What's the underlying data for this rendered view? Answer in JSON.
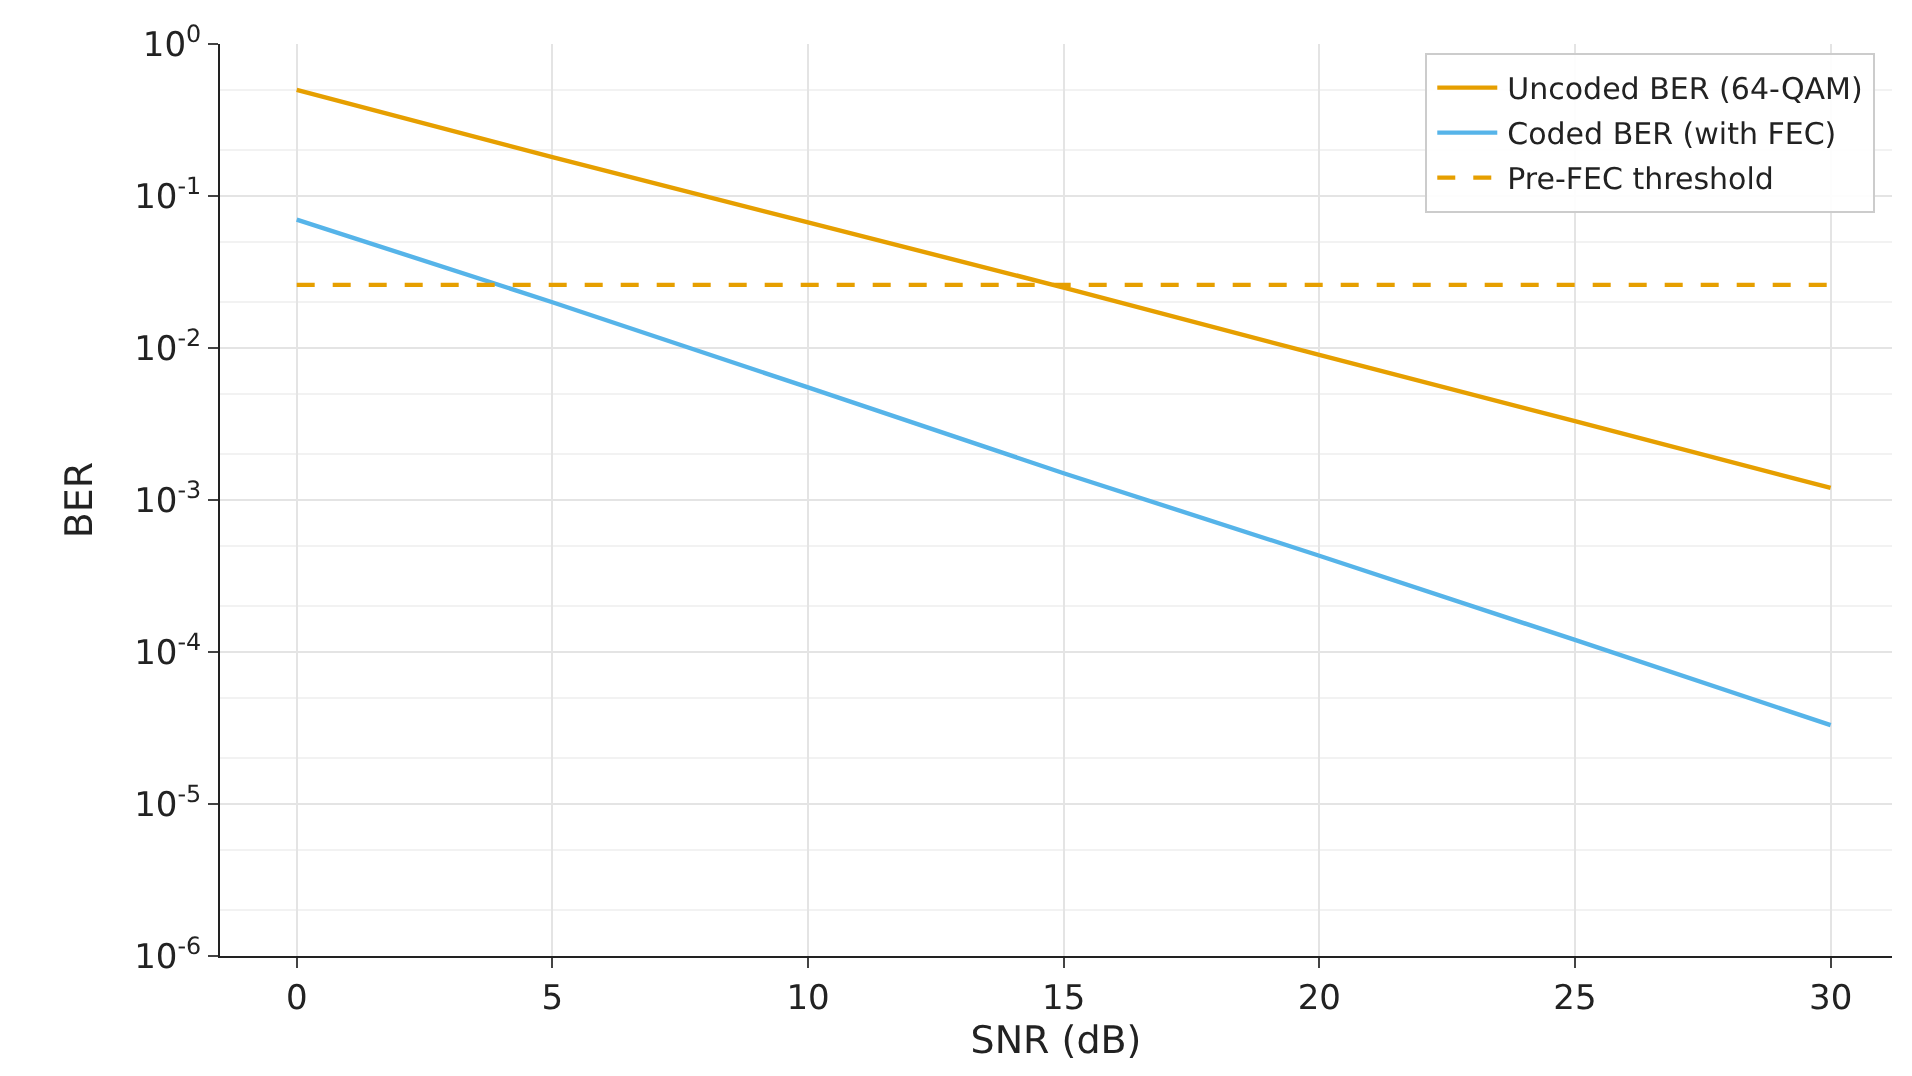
{
  "chart_data": {
    "type": "line",
    "xlabel": "SNR (dB)",
    "ylabel": "BER",
    "log": "y",
    "grid": true,
    "legend": "top right",
    "xlim": [
      -1.5,
      31.2
    ],
    "xticks": [
      0,
      5,
      10,
      15,
      20,
      25,
      30
    ],
    "ylim": [
      1e-06,
      1
    ],
    "yticks": [
      {
        "value": 1e-06,
        "label": "10$^{-6}$"
      },
      {
        "value": 1e-05,
        "label": "10$^{-5}$"
      },
      {
        "value": 0.0001,
        "label": "10$^{-4}$"
      },
      {
        "value": 0.001,
        "label": "10$^{-3}$"
      },
      {
        "value": 0.01,
        "label": "10$^{-2}$"
      },
      {
        "value": 0.1,
        "label": "10$^{-1}$"
      },
      {
        "value": 1,
        "label": "10$^{0}$"
      }
    ],
    "x": [
      0,
      5,
      10,
      15,
      20,
      25,
      30
    ],
    "series": [
      {
        "name": "Uncoded BER (64-QAM)",
        "color": "#e69f00",
        "values": [
          0.5,
          0.18,
          0.067,
          0.025,
          0.009,
          0.0033,
          0.0012
        ]
      },
      {
        "name": "Coded BER (with FEC)",
        "color": "#56b4e9",
        "values": [
          0.07,
          0.02,
          0.0055,
          0.0015,
          0.00043,
          0.00012,
          3.3e-05
        ]
      },
      {
        "name": "Pre-FEC threshold",
        "color": "#e69f00",
        "x": [
          0,
          30
        ],
        "values": [
          0.026,
          0.026
        ],
        "line_style": "dashed"
      }
    ]
  }
}
